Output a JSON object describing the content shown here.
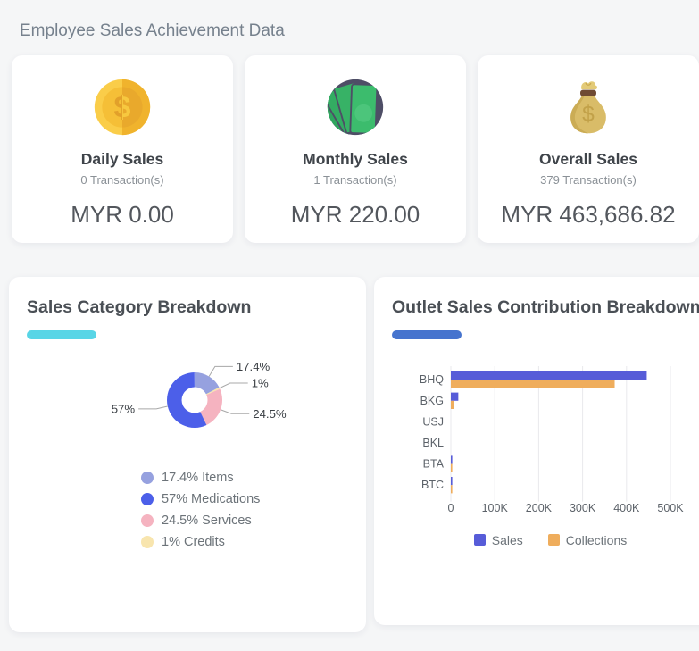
{
  "page": {
    "title": "Employee Sales Achievement Data"
  },
  "summary_cards": [
    {
      "icon": "coin-icon",
      "title": "Daily Sales",
      "transactions": "0 Transaction(s)",
      "amount": "MYR 0.00"
    },
    {
      "icon": "banknotes-icon",
      "title": "Monthly Sales",
      "transactions": "1 Transaction(s)",
      "amount": "MYR 220.00"
    },
    {
      "icon": "money-bag-icon",
      "title": "Overall Sales",
      "transactions": "379 Transaction(s)",
      "amount": "MYR 463,686.82"
    }
  ],
  "chart_data": [
    {
      "type": "pie",
      "subtype": "donut",
      "title": "Sales Category Breakdown",
      "accent_color": "#58D5E6",
      "start_angle_deg": 0,
      "clockwise": true,
      "slices": [
        {
          "name": "Items",
          "percent": 17.4,
          "label": "17.4%",
          "color": "#96A1DF"
        },
        {
          "name": "Credits",
          "percent": 1,
          "label": "1%",
          "color": "#F8E5AE"
        },
        {
          "name": "Services",
          "percent": 24.5,
          "label": "24.5%",
          "color": "#F5B3C0"
        },
        {
          "name": "Medications",
          "percent": 57,
          "label": "57%",
          "color": "#4C5FE9"
        }
      ],
      "legend_position": "bottom-left",
      "legend": [
        {
          "text": "17.4% Items",
          "color": "#96A1DF"
        },
        {
          "text": "57% Medications",
          "color": "#4C5FE9"
        },
        {
          "text": "24.5% Services",
          "color": "#F5B3C0"
        },
        {
          "text": "1% Credits",
          "color": "#F8E5AE"
        }
      ]
    },
    {
      "type": "bar",
      "orientation": "horizontal",
      "title": "Outlet Sales Contribution Breakdown",
      "accent_color": "#4674CE",
      "categories": [
        "BHQ",
        "BKG",
        "USJ",
        "BKL",
        "BTA",
        "BTC"
      ],
      "series": [
        {
          "name": "Sales",
          "color": "#575CD8",
          "values": [
            446000,
            17000,
            0,
            0,
            500,
            2000
          ]
        },
        {
          "name": "Collections",
          "color": "#EFAD5C",
          "values": [
            373000,
            7000,
            0,
            0,
            300,
            1500
          ]
        }
      ],
      "xlim": [
        0,
        500000
      ],
      "x_ticks": [
        {
          "value": 0,
          "label": "0"
        },
        {
          "value": 100000,
          "label": "100K"
        },
        {
          "value": 200000,
          "label": "200K"
        },
        {
          "value": 300000,
          "label": "300K"
        },
        {
          "value": 400000,
          "label": "400K"
        },
        {
          "value": 500000,
          "label": "500K"
        }
      ],
      "grid": true,
      "legend_position": "bottom-center"
    }
  ]
}
